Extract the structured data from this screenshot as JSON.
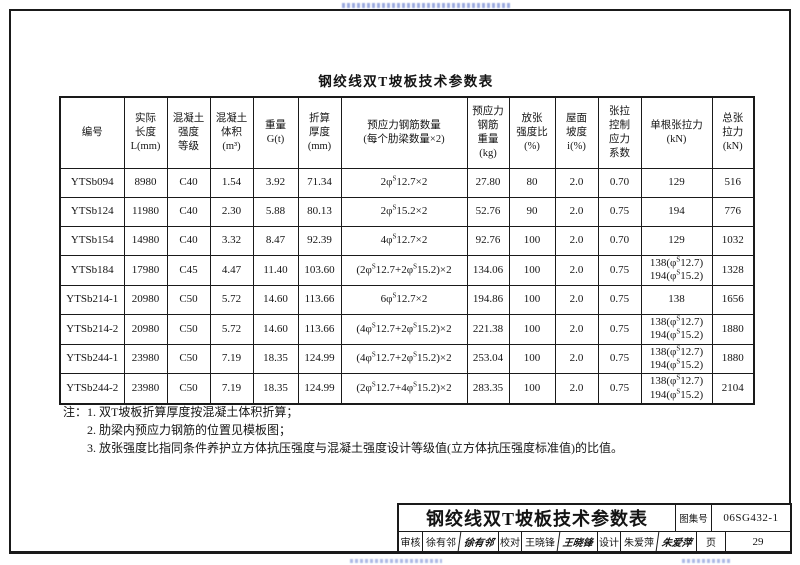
{
  "page": {
    "caption": "钢绞线双T坡板技术参数表"
  },
  "table": {
    "headers": [
      "编号",
      "实际\n长度\nL(mm)",
      "混凝土\n强度\n等级",
      "混凝土\n体积\n(m³)",
      "重量\nG(t)",
      "折算\n厚度\n(mm)",
      "预应力钢筋数量\n(每个肋梁数量×2)",
      "预应力\n钢筋\n重量\n(kg)",
      "放张\n强度比\n(%)",
      "屋面\n坡度\ni(%)",
      "张拉\n控制\n应力\n系数",
      "单根张拉力\n(kN)",
      "总张\n拉力\n(kN)"
    ],
    "rows": [
      [
        "YTSb094",
        "8980",
        "C40",
        "1.54",
        "3.92",
        "71.34",
        "2φˢ12.7×2",
        "27.80",
        "80",
        "2.0",
        "0.70",
        "129",
        "516"
      ],
      [
        "YTSb124",
        "11980",
        "C40",
        "2.30",
        "5.88",
        "80.13",
        "2φˢ15.2×2",
        "52.76",
        "90",
        "2.0",
        "0.75",
        "194",
        "776"
      ],
      [
        "YTSb154",
        "14980",
        "C40",
        "3.32",
        "8.47",
        "92.39",
        "4φˢ12.7×2",
        "92.76",
        "100",
        "2.0",
        "0.70",
        "129",
        "1032"
      ],
      [
        "YTSb184",
        "17980",
        "C45",
        "4.47",
        "11.40",
        "103.60",
        "(2φˢ12.7+2φˢ15.2)×2",
        "134.06",
        "100",
        "2.0",
        "0.75",
        "138(φˢ12.7)\n194(φˢ15.2)",
        "1328"
      ],
      [
        "YTSb214-1",
        "20980",
        "C50",
        "5.72",
        "14.60",
        "113.66",
        "6φˢ12.7×2",
        "194.86",
        "100",
        "2.0",
        "0.75",
        "138",
        "1656"
      ],
      [
        "YTSb214-2",
        "20980",
        "C50",
        "5.72",
        "14.60",
        "113.66",
        "(4φˢ12.7+2φˢ15.2)×2",
        "221.38",
        "100",
        "2.0",
        "0.75",
        "138(φˢ12.7)\n194(φˢ15.2)",
        "1880"
      ],
      [
        "YTSb244-1",
        "23980",
        "C50",
        "7.19",
        "18.35",
        "124.99",
        "(4φˢ12.7+2φˢ15.2)×2",
        "253.04",
        "100",
        "2.0",
        "0.75",
        "138(φˢ12.7)\n194(φˢ15.2)",
        "1880"
      ],
      [
        "YTSb244-2",
        "23980",
        "C50",
        "7.19",
        "18.35",
        "124.99",
        "(2φˢ12.7+4φˢ15.2)×2",
        "283.35",
        "100",
        "2.0",
        "0.75",
        "138(φˢ12.7)\n194(φˢ15.2)",
        "2104"
      ]
    ]
  },
  "notes": {
    "label": "注：",
    "items": [
      "1. 双T坡板折算厚度按混凝土体积折算；",
      "2. 肋梁内预应力钢筋的位置见模板图；",
      "3. 放张强度比指同条件养护立方体抗压强度与混凝土强度设计等级值(立方体抗压强度标准值)的比值。"
    ]
  },
  "title_block": {
    "title": "钢绞线双T坡板技术参数表",
    "atlas_label": "图集号",
    "atlas_number": "06SG432-1",
    "page_label": "页",
    "page_number": "29",
    "review_label": "审核",
    "reviewer_name": "徐有邻",
    "reviewer_signature": "徐有邻",
    "proofread_label": "校对",
    "proofreader_name": "王晓锋",
    "proofreader_signature": "王晓锋",
    "design_label": "设计",
    "designer_name": "朱爱萍",
    "designer_signature": "朱爱萍"
  }
}
